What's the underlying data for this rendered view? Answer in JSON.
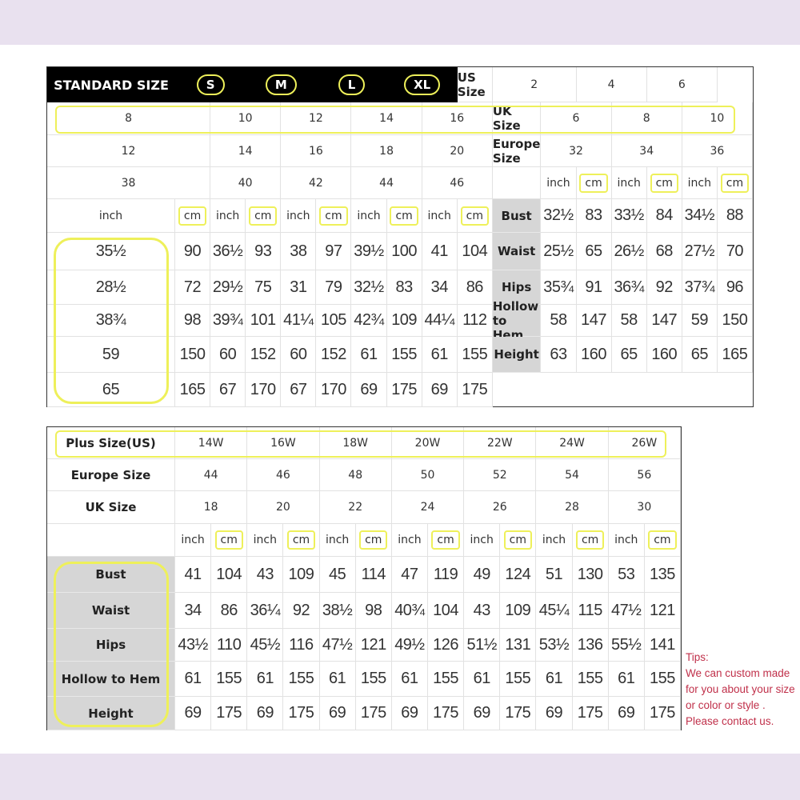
{
  "colors": {
    "highlight": "#eef05a",
    "band": "#e9e1ef",
    "tips": "#c0304a",
    "label_bg": "#d6d6d6"
  },
  "standard": {
    "header_label": "STANDARD SIZE",
    "size_groups": [
      "S",
      "M",
      "L",
      "XL"
    ],
    "size_rows": [
      {
        "label": "US Size",
        "values": [
          "2",
          "4",
          "6",
          "8",
          "10",
          "12",
          "14",
          "16"
        ]
      },
      {
        "label": "UK Size",
        "values": [
          "6",
          "8",
          "10",
          "12",
          "14",
          "16",
          "18",
          "20"
        ]
      },
      {
        "label": "Europe Size",
        "values": [
          "32",
          "34",
          "36",
          "38",
          "40",
          "42",
          "44",
          "46"
        ]
      }
    ],
    "units": [
      "inch",
      "cm"
    ],
    "measurements": [
      {
        "label": "Bust",
        "values": [
          "32½",
          "83",
          "33½",
          "84",
          "34½",
          "88",
          "35½",
          "90",
          "36½",
          "93",
          "38",
          "97",
          "39½",
          "100",
          "41",
          "104"
        ]
      },
      {
        "label": "Waist",
        "values": [
          "25½",
          "65",
          "26½",
          "68",
          "27½",
          "70",
          "28½",
          "72",
          "29½",
          "75",
          "31",
          "79",
          "32½",
          "83",
          "34",
          "86"
        ]
      },
      {
        "label": "Hips",
        "values": [
          "35¾",
          "91",
          "36¾",
          "92",
          "37¾",
          "96",
          "38¾",
          "98",
          "39¾",
          "101",
          "41¼",
          "105",
          "42¾",
          "109",
          "44¼",
          "112"
        ]
      },
      {
        "label": "Hollow to Hem",
        "values": [
          "58",
          "147",
          "58",
          "147",
          "59",
          "150",
          "59",
          "150",
          "60",
          "152",
          "60",
          "152",
          "61",
          "155",
          "61",
          "155"
        ]
      },
      {
        "label": "Height",
        "values": [
          "63",
          "160",
          "65",
          "160",
          "65",
          "165",
          "65",
          "165",
          "67",
          "170",
          "67",
          "170",
          "69",
          "175",
          "69",
          "175"
        ]
      }
    ]
  },
  "plus": {
    "size_rows": [
      {
        "label": "Plus Size(US)",
        "values": [
          "14W",
          "16W",
          "18W",
          "20W",
          "22W",
          "24W",
          "26W"
        ]
      },
      {
        "label": "Europe Size",
        "values": [
          "44",
          "46",
          "48",
          "50",
          "52",
          "54",
          "56"
        ]
      },
      {
        "label": "UK Size",
        "values": [
          "18",
          "20",
          "22",
          "24",
          "26",
          "28",
          "30"
        ]
      }
    ],
    "units": [
      "inch",
      "cm"
    ],
    "measurements": [
      {
        "label": "Bust",
        "values": [
          "41",
          "104",
          "43",
          "109",
          "45",
          "114",
          "47",
          "119",
          "49",
          "124",
          "51",
          "130",
          "53",
          "135"
        ]
      },
      {
        "label": "Waist",
        "values": [
          "34",
          "86",
          "36¼",
          "92",
          "38½",
          "98",
          "40¾",
          "104",
          "43",
          "109",
          "45¼",
          "115",
          "47½",
          "121"
        ]
      },
      {
        "label": "Hips",
        "values": [
          "43½",
          "110",
          "45½",
          "116",
          "47½",
          "121",
          "49½",
          "126",
          "51½",
          "131",
          "53½",
          "136",
          "55½",
          "141"
        ]
      },
      {
        "label": "Hollow to Hem",
        "values": [
          "61",
          "155",
          "61",
          "155",
          "61",
          "155",
          "61",
          "155",
          "61",
          "155",
          "61",
          "155",
          "61",
          "155"
        ]
      },
      {
        "label": "Height",
        "values": [
          "69",
          "175",
          "69",
          "175",
          "69",
          "175",
          "69",
          "175",
          "69",
          "175",
          "69",
          "175",
          "69",
          "175"
        ]
      }
    ]
  },
  "tips": {
    "title": "Tips:",
    "lines": [
      "We can custom made",
      "for you about your size",
      "or color or style .",
      "Please contact us."
    ]
  }
}
